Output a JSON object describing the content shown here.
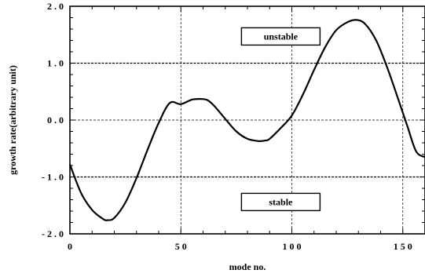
{
  "chart_data": {
    "type": "line",
    "title": "",
    "xlabel": "mode  no.",
    "ylabel": "growth  rate(arbitrary  unit)",
    "xlim": [
      0,
      160
    ],
    "ylim": [
      -2.0,
      2.0
    ],
    "x_ticks": [
      {
        "value": 0,
        "label": "0"
      },
      {
        "value": 50,
        "label": "5 0"
      },
      {
        "value": 100,
        "label": "1 0 0"
      },
      {
        "value": 150,
        "label": "1 5 0"
      }
    ],
    "y_ticks": [
      {
        "value": 2.0,
        "label": "2 . 0"
      },
      {
        "value": 1.0,
        "label": "1 . 0"
      },
      {
        "value": 0.0,
        "label": "0 . 0"
      },
      {
        "value": -1.0,
        "label": "- 1 . 0"
      },
      {
        "value": -2.0,
        "label": "- 2 . 0"
      }
    ],
    "grid": true,
    "reference_lines": [
      1.0,
      -1.0
    ],
    "annotations": [
      {
        "text": "unstable",
        "x": 95,
        "y": 1.47
      },
      {
        "text": "stable",
        "x": 95,
        "y": -1.44
      }
    ],
    "series": [
      {
        "x": [
          0,
          5,
          10,
          15,
          17,
          20,
          25,
          30,
          35,
          40,
          45,
          50,
          55,
          59,
          62,
          65,
          70,
          75,
          80,
          85,
          88,
          90,
          95,
          100,
          105,
          110,
          115,
          120,
          125,
          129,
          133,
          138,
          143,
          148,
          152,
          156,
          160
        ],
        "y": [
          -0.78,
          -1.28,
          -1.58,
          -1.74,
          -1.76,
          -1.72,
          -1.45,
          -1.02,
          -0.52,
          -0.05,
          0.3,
          0.28,
          0.36,
          0.37,
          0.35,
          0.25,
          0.02,
          -0.2,
          -0.33,
          -0.37,
          -0.36,
          -0.33,
          -0.14,
          0.08,
          0.45,
          0.88,
          1.28,
          1.58,
          1.72,
          1.76,
          1.69,
          1.4,
          0.92,
          0.36,
          -0.1,
          -0.55,
          -0.65
        ]
      }
    ]
  }
}
